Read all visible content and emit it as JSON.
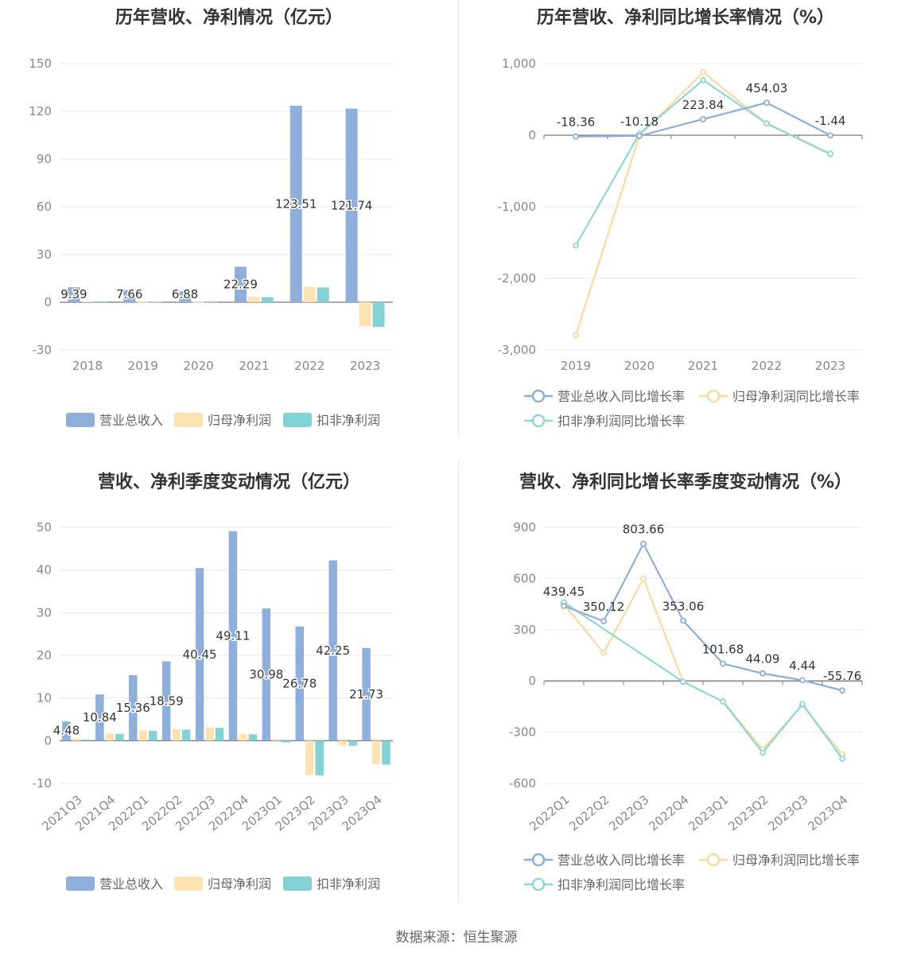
{
  "source": "数据来源：恒生聚源",
  "colors": {
    "revenue": "#8eaedb",
    "net_profit": "#fde3b1",
    "deducted": "#83d2d6",
    "net_profit_line": "#fcd9a0",
    "deducted_line": "#8fd8d4",
    "revenue_line": "#8eaedb",
    "axis_text": "#666666",
    "grid": "#e6e9f0",
    "label": "#333333"
  },
  "chart_data": [
    {
      "type": "bar",
      "title": "历年营收、净利情况（亿元）",
      "categories": [
        "2018",
        "2019",
        "2020",
        "2021",
        "2022",
        "2023"
      ],
      "ylim": [
        -30,
        150
      ],
      "yticks": [
        -30,
        0,
        30,
        60,
        90,
        120,
        150
      ],
      "ytick_labels": [
        "-30",
        "0",
        "30",
        "60",
        "90",
        "120",
        "150"
      ],
      "series": [
        {
          "name": "营业总收入",
          "values": [
            9.39,
            7.66,
            6.88,
            22.29,
            123.51,
            121.74
          ],
          "labels": [
            "9.39",
            "7.66",
            "6.88",
            "22.29",
            "123.51",
            "121.74"
          ]
        },
        {
          "name": "归母净利润",
          "values": [
            0.5,
            0.3,
            0.2,
            3.3,
            9.5,
            -15.2
          ]
        },
        {
          "name": "扣非净利润",
          "values": [
            0.4,
            0.2,
            0.15,
            3.2,
            9.3,
            -15.6
          ]
        }
      ],
      "legend": "bottom"
    },
    {
      "type": "line",
      "title": "历年营收、净利同比增长率情况（%）",
      "categories": [
        "2019",
        "2020",
        "2021",
        "2022",
        "2023"
      ],
      "ylim": [
        -3000,
        1000
      ],
      "yticks": [
        -3000,
        -2000,
        -1000,
        0,
        1000
      ],
      "ytick_labels": [
        "-3,000",
        "-2,000",
        "-1,000",
        "0",
        "1,000"
      ],
      "series": [
        {
          "name": "营业总收入同比增长率",
          "values": [
            -18.36,
            -10.18,
            223.84,
            454.03,
            -1.44
          ],
          "labels": [
            "-18.36",
            "-10.18",
            "223.84",
            "454.03",
            "-1.44"
          ]
        },
        {
          "name": "归母净利润同比增长率",
          "values": [
            -2790,
            -10,
            880,
            160,
            -270
          ]
        },
        {
          "name": "扣非净利润同比增长率",
          "values": [
            -1540,
            20,
            770,
            165,
            -260
          ]
        }
      ],
      "legend": "bottom"
    },
    {
      "type": "bar",
      "title": "营收、净利季度变动情况（亿元）",
      "categories": [
        "2021Q3",
        "2021Q4",
        "2022Q1",
        "2022Q2",
        "2022Q3",
        "2022Q4",
        "2023Q1",
        "2023Q2",
        "2023Q3",
        "2023Q4"
      ],
      "ylim": [
        -10,
        50
      ],
      "yticks": [
        -10,
        0,
        10,
        20,
        30,
        40,
        50
      ],
      "ytick_labels": [
        "-10",
        "0",
        "10",
        "20",
        "30",
        "40",
        "50"
      ],
      "series": [
        {
          "name": "营业总收入",
          "values": [
            4.48,
            10.84,
            15.36,
            18.59,
            40.45,
            49.11,
            30.98,
            26.78,
            42.25,
            21.73
          ],
          "labels": [
            "4.48",
            "10.84",
            "15.36",
            "18.59",
            "40.45",
            "49.11",
            "30.98",
            "26.78",
            "42.25",
            "21.73"
          ]
        },
        {
          "name": "归母净利润",
          "values": [
            0.5,
            1.7,
            2.4,
            2.7,
            3.1,
            1.6,
            -0.3,
            -8.0,
            -1.1,
            -5.5
          ]
        },
        {
          "name": "扣非净利润",
          "values": [
            0.3,
            1.6,
            2.3,
            2.6,
            3.0,
            1.5,
            -0.4,
            -8.1,
            -1.2,
            -5.6
          ]
        }
      ],
      "legend": "bottom"
    },
    {
      "type": "line",
      "title": "营收、净利同比增长率季度变动情况（%）",
      "categories": [
        "2022Q1",
        "2022Q2",
        "2022Q3",
        "2022Q4",
        "2023Q1",
        "2023Q2",
        "2023Q3",
        "2023Q4"
      ],
      "ylim": [
        -600,
        900
      ],
      "yticks": [
        -600,
        -300,
        0,
        300,
        600,
        900
      ],
      "ytick_labels": [
        "-600",
        "-300",
        "0",
        "300",
        "600",
        "900"
      ],
      "series": [
        {
          "name": "营业总收入同比增长率",
          "values": [
            439.45,
            350.12,
            803.66,
            353.06,
            101.68,
            44.09,
            4.44,
            -55.76
          ],
          "labels": [
            "439.45",
            "350.12",
            "803.66",
            "353.06",
            "101.68",
            "44.09",
            "4.44",
            "-55.76"
          ]
        },
        {
          "name": "归母净利润同比增长率",
          "values": [
            450,
            165,
            600,
            -5,
            -120,
            -400,
            -140,
            -430
          ]
        },
        {
          "name": "扣非净利润同比增长率",
          "values": [
            460,
            null,
            null,
            -5,
            -120,
            -420,
            -135,
            -455
          ]
        }
      ],
      "legend": "bottom"
    }
  ]
}
